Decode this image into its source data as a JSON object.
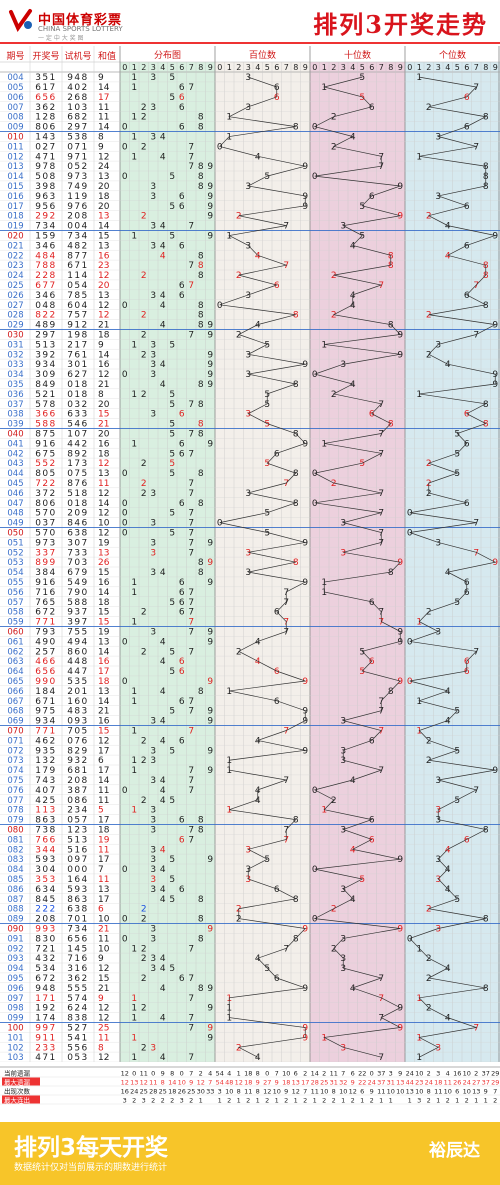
{
  "header": {
    "logo_cn": "中国体育彩票",
    "logo_en": "CHINA SPORTS LOTTERY",
    "logo_slogan": "一 定 中 大 奖 图",
    "title": "排列3开奖走势"
  },
  "footer": {
    "title": "排列3每天开奖",
    "note": "数据统计仅对当前展示的期数进行统计",
    "brand": "裕辰达"
  },
  "chart_data": {
    "type": "table",
    "columns": [
      "期号",
      "开奖号",
      "试机号",
      "和值",
      "分布图",
      "百位数",
      "十位数",
      "个位数"
    ],
    "digit_header": [
      "0",
      "1",
      "2",
      "3",
      "4",
      "5",
      "6",
      "7",
      "8",
      "9"
    ],
    "rows": [
      [
        "004",
        "351",
        "948",
        "9"
      ],
      [
        "005",
        "617",
        "402",
        "14"
      ],
      [
        "006",
        "656",
        "268",
        "17"
      ],
      [
        "007",
        "362",
        "103",
        "11"
      ],
      [
        "008",
        "128",
        "682",
        "11"
      ],
      [
        "009",
        "806",
        "297",
        "14"
      ],
      [
        "010",
        "143",
        "538",
        "8"
      ],
      [
        "011",
        "027",
        "071",
        "9"
      ],
      [
        "012",
        "471",
        "971",
        "12"
      ],
      [
        "013",
        "978",
        "052",
        "24"
      ],
      [
        "014",
        "508",
        "973",
        "13"
      ],
      [
        "015",
        "398",
        "749",
        "20"
      ],
      [
        "016",
        "963",
        "119",
        "18"
      ],
      [
        "017",
        "956",
        "976",
        "20"
      ],
      [
        "018",
        "292",
        "208",
        "13"
      ],
      [
        "019",
        "734",
        "004",
        "14"
      ],
      [
        "020",
        "159",
        "734",
        "15"
      ],
      [
        "021",
        "346",
        "482",
        "13"
      ],
      [
        "022",
        "484",
        "877",
        "16"
      ],
      [
        "023",
        "788",
        "671",
        "23"
      ],
      [
        "024",
        "228",
        "114",
        "12"
      ],
      [
        "025",
        "677",
        "054",
        "20"
      ],
      [
        "026",
        "346",
        "785",
        "13"
      ],
      [
        "027",
        "048",
        "604",
        "12"
      ],
      [
        "028",
        "822",
        "757",
        "12"
      ],
      [
        "029",
        "489",
        "912",
        "21"
      ],
      [
        "030",
        "297",
        "198",
        "18"
      ],
      [
        "031",
        "513",
        "217",
        "9"
      ],
      [
        "032",
        "392",
        "761",
        "14"
      ],
      [
        "033",
        "934",
        "301",
        "16"
      ],
      [
        "034",
        "309",
        "627",
        "12"
      ],
      [
        "035",
        "849",
        "018",
        "21"
      ],
      [
        "036",
        "521",
        "018",
        "8"
      ],
      [
        "037",
        "578",
        "032",
        "20"
      ],
      [
        "038",
        "366",
        "633",
        "15"
      ],
      [
        "039",
        "588",
        "546",
        "21"
      ],
      [
        "040",
        "875",
        "107",
        "20"
      ],
      [
        "041",
        "916",
        "442",
        "16"
      ],
      [
        "042",
        "675",
        "892",
        "18"
      ],
      [
        "043",
        "552",
        "173",
        "12"
      ],
      [
        "044",
        "805",
        "075",
        "13"
      ],
      [
        "045",
        "722",
        "876",
        "11"
      ],
      [
        "046",
        "372",
        "518",
        "12"
      ],
      [
        "047",
        "806",
        "018",
        "14"
      ],
      [
        "048",
        "570",
        "209",
        "12"
      ],
      [
        "049",
        "037",
        "846",
        "10"
      ],
      [
        "050",
        "570",
        "638",
        "12"
      ],
      [
        "051",
        "973",
        "307",
        "19"
      ],
      [
        "052",
        "337",
        "733",
        "13"
      ],
      [
        "053",
        "899",
        "703",
        "26"
      ],
      [
        "054",
        "384",
        "679",
        "15"
      ],
      [
        "055",
        "916",
        "549",
        "16"
      ],
      [
        "056",
        "716",
        "790",
        "14"
      ],
      [
        "057",
        "765",
        "588",
        "18"
      ],
      [
        "058",
        "672",
        "937",
        "15"
      ],
      [
        "059",
        "771",
        "397",
        "15"
      ],
      [
        "060",
        "793",
        "755",
        "19"
      ],
      [
        "061",
        "490",
        "494",
        "13"
      ],
      [
        "062",
        "257",
        "860",
        "14"
      ],
      [
        "063",
        "466",
        "448",
        "16"
      ],
      [
        "064",
        "656",
        "447",
        "17"
      ],
      [
        "065",
        "990",
        "535",
        "18"
      ],
      [
        "066",
        "184",
        "201",
        "13"
      ],
      [
        "067",
        "671",
        "160",
        "14"
      ],
      [
        "068",
        "975",
        "483",
        "21"
      ],
      [
        "069",
        "934",
        "093",
        "16"
      ],
      [
        "070",
        "771",
        "705",
        "15"
      ],
      [
        "071",
        "462",
        "076",
        "12"
      ],
      [
        "072",
        "935",
        "829",
        "17"
      ],
      [
        "073",
        "132",
        "932",
        "6"
      ],
      [
        "074",
        "179",
        "681",
        "17"
      ],
      [
        "075",
        "743",
        "208",
        "14"
      ],
      [
        "076",
        "407",
        "387",
        "11"
      ],
      [
        "077",
        "425",
        "086",
        "11"
      ],
      [
        "078",
        "113",
        "234",
        "5"
      ],
      [
        "079",
        "863",
        "057",
        "17"
      ],
      [
        "080",
        "738",
        "123",
        "18"
      ],
      [
        "081",
        "766",
        "513",
        "19"
      ],
      [
        "082",
        "344",
        "516",
        "11"
      ],
      [
        "083",
        "593",
        "097",
        "17"
      ],
      [
        "084",
        "304",
        "000",
        "7"
      ],
      [
        "085",
        "353",
        "164",
        "11"
      ],
      [
        "086",
        "634",
        "593",
        "13"
      ],
      [
        "087",
        "845",
        "863",
        "17"
      ],
      [
        "088",
        "222",
        "638",
        "6"
      ],
      [
        "089",
        "208",
        "701",
        "10"
      ],
      [
        "090",
        "993",
        "734",
        "21"
      ],
      [
        "091",
        "830",
        "656",
        "11"
      ],
      [
        "092",
        "721",
        "145",
        "10"
      ],
      [
        "093",
        "432",
        "716",
        "9"
      ],
      [
        "094",
        "534",
        "316",
        "12"
      ],
      [
        "095",
        "672",
        "362",
        "15"
      ],
      [
        "096",
        "948",
        "555",
        "21"
      ],
      [
        "097",
        "171",
        "574",
        "9"
      ],
      [
        "098",
        "192",
        "624",
        "12"
      ],
      [
        "099",
        "174",
        "838",
        "12"
      ],
      [
        "100",
        "997",
        "527",
        "25"
      ],
      [
        "101",
        "911",
        "541",
        "11"
      ],
      [
        "102",
        "233",
        "556",
        "8"
      ],
      [
        "103",
        "471",
        "053",
        "12"
      ]
    ],
    "stats_labels": [
      "当前遗漏",
      "最大遗漏",
      "出现次数",
      "最大连出"
    ],
    "stats": [
      [
        "12 0 11 0 9 8 0 7 2 4",
        "54 4 1 18 8 0 7 10 6 2",
        "14 2 11 7 6 22 0 37 3 9",
        "24 10 2 3 4 16 10 2 37 29"
      ],
      [
        "12 13 12 11 8 14 10 9 12 7",
        "54 48 12 18 9 27 9 18 13 17",
        "28 25 31 32 9 22 24 37 31 13",
        "44 23 24 18 11 26 24 27 37 29"
      ],
      [
        "16 24 25 28 25 18 26 25 30 33",
        "3 10 8 11 8 12 10 9 12 7",
        "11 10 8 10 12 6 9 11 10 10",
        "13 10 8 11 10 6 10 13 9 7"
      ],
      [
        "3 2 3 2 2 2 3 2 1",
        "1 2 1 2 1 2 1 2 1 2",
        "1 2 2 1 2 1 2 1 1",
        "1 3 2 1 2 1 2 1 1 2"
      ]
    ]
  }
}
